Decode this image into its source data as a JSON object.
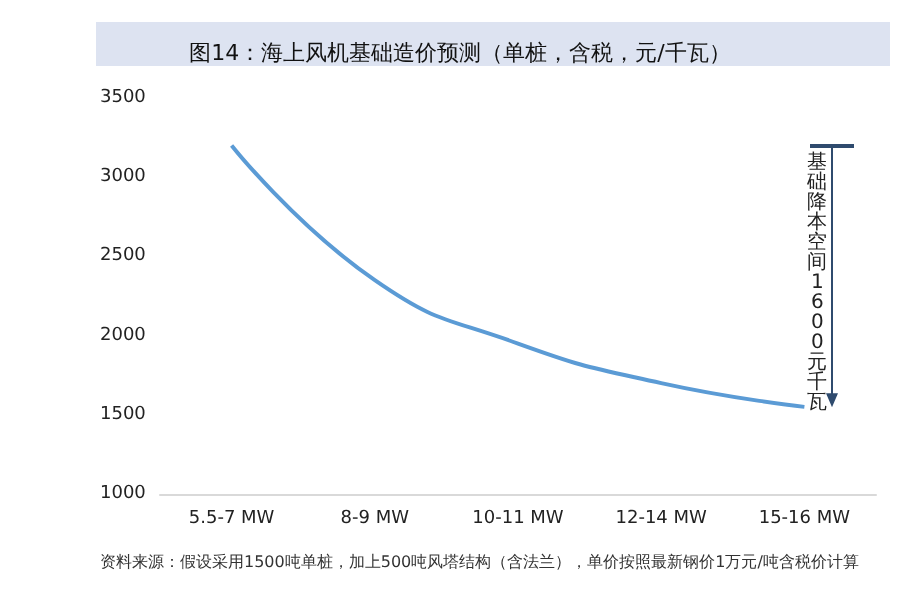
{
  "chart_data": {
    "type": "line",
    "title": "图14：海上风机基础造价预测（单桩，含税，元/千瓦）",
    "categories": [
      "5.5-7 MW",
      "8-9 MW",
      "10-11 MW",
      "12-14 MW",
      "15-16 MW"
    ],
    "series": [
      {
        "color": "#5b9bd5",
        "values": [
          3200,
          2350,
          1950,
          1700,
          1550
        ]
      }
    ],
    "ylim": [
      1000,
      3500
    ],
    "yticks": [
      1000,
      1500,
      2000,
      2500,
      3000,
      3500
    ],
    "grid": false,
    "marker": "none",
    "line_style": "solid",
    "annotations": [
      "基础降本空间1600元千瓦",
      "资料来源：假设采用1500吨单桩，加上500吨风塔结构（含法兰），单价按照最新钢价1万元/吨含税价计算"
    ]
  }
}
